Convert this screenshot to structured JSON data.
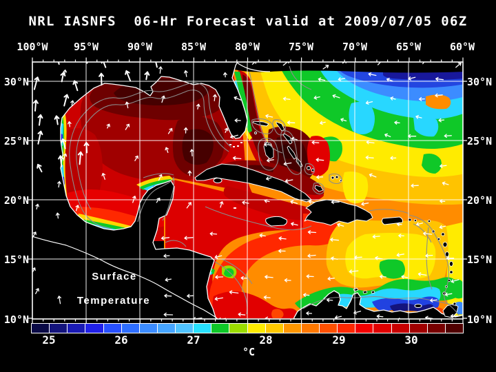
{
  "title": "NRL IASNFS  06-Hr Forecast valid at 2009/07/05 06Z",
  "axes": {
    "top": [
      "100°W",
      "95°W",
      "90°W",
      "85°W",
      "80°W",
      "75°W",
      "70°W",
      "65°W",
      "60°W"
    ],
    "left": [
      "30°N",
      "25°N",
      "20°N",
      "15°N",
      "10°N"
    ],
    "right": [
      "30°N",
      "25°N",
      "20°N",
      "15°N",
      "10°N"
    ]
  },
  "map_overlay": {
    "line1": "Surface",
    "line2": "Temperature"
  },
  "colorbar": {
    "unit": "°C",
    "tick_labels": [
      "25",
      "26",
      "27",
      "28",
      "29",
      "30"
    ],
    "cell_colors": [
      "#0A0A46",
      "#14147D",
      "#1A1AB4",
      "#2121E8",
      "#2850FF",
      "#2E6EFF",
      "#3C8CFF",
      "#46A5FF",
      "#50C3FF",
      "#28E1FF",
      "#0FC828",
      "#9BDC00",
      "#FFEB00",
      "#FFC800",
      "#FF9600",
      "#FF7800",
      "#FF5000",
      "#FF2800",
      "#F50000",
      "#E10000",
      "#C80000",
      "#A00000",
      "#780000",
      "#500000"
    ]
  },
  "colors": {
    "background": "#000000",
    "frame": "#FFFFFF",
    "gridlines": "#FFFFFF",
    "coastline": "#FFFFFF",
    "land": "#000000",
    "bathymetry_contours": "#8C8C8C",
    "vector_arrows": "#FFFFFF"
  }
}
